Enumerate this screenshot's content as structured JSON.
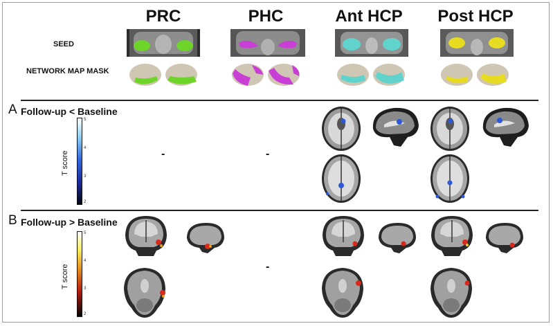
{
  "columns": [
    "PRC",
    "PHC",
    "Ant HCP",
    "Post HCP"
  ],
  "row_labels": {
    "seed": "SEED",
    "network": "NETWORK MAP MASK"
  },
  "panel_a": {
    "letter": "A",
    "title": "Follow-up < Baseline"
  },
  "panel_b": {
    "letter": "B",
    "title": "Follow-up > Baseline"
  },
  "colorbar_label": "T score",
  "colorbar_ticks": [
    "5",
    "4",
    "3",
    "2"
  ],
  "empty_marker": "-",
  "colors": {
    "PRC": "#6fd42a",
    "PHC": "#c93fd6",
    "Ant HCP": "#5fd3cc",
    "Post HCP": "#e8dc22",
    "brain_cortex": "#cfc6b4",
    "decrease": "#2d59d8",
    "increase": "#d8291c"
  }
}
